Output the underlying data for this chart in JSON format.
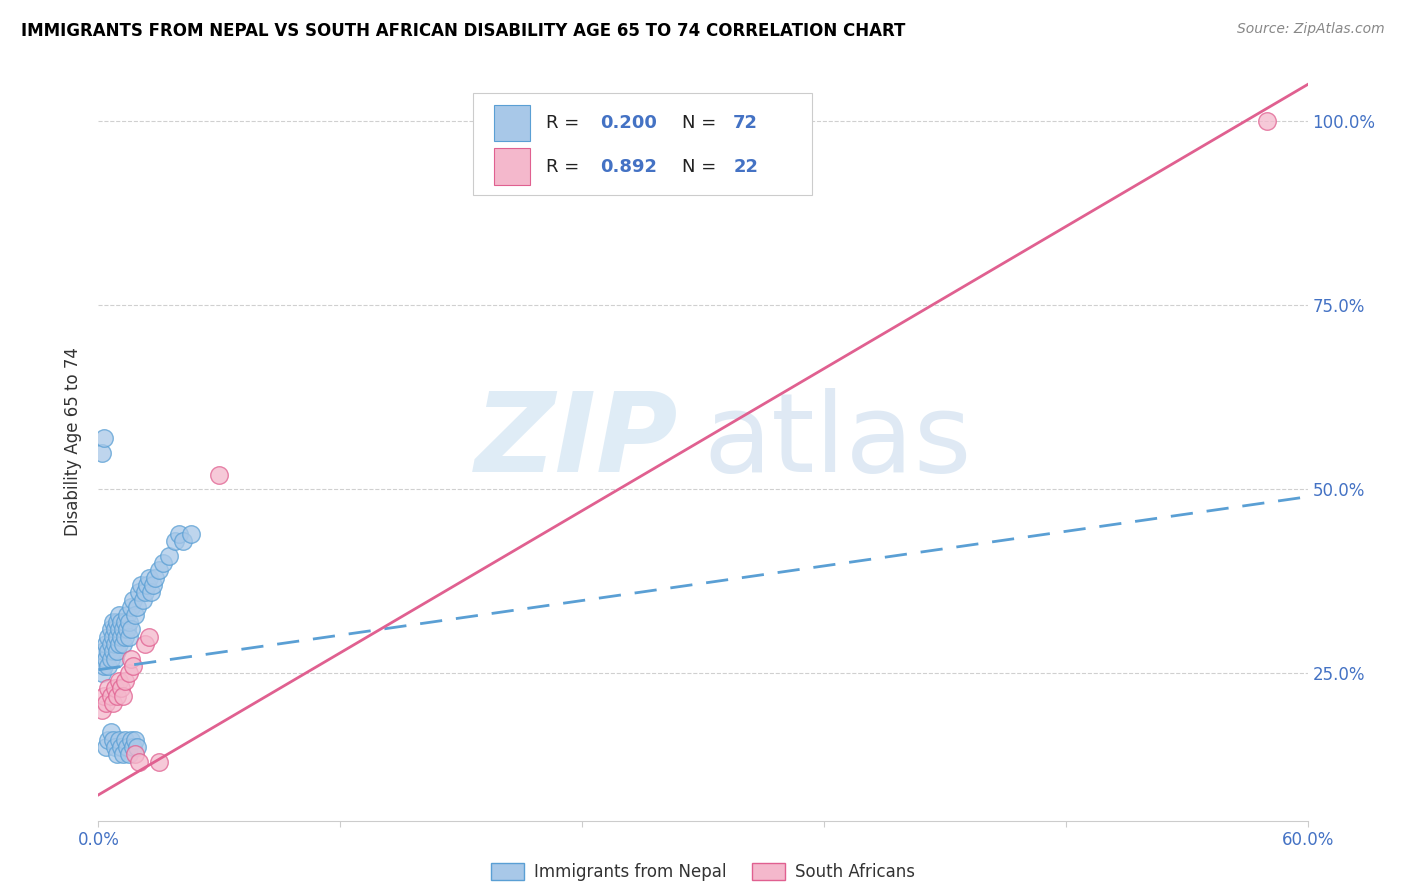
{
  "title": "IMMIGRANTS FROM NEPAL VS SOUTH AFRICAN DISABILITY AGE 65 TO 74 CORRELATION CHART",
  "source": "Source: ZipAtlas.com",
  "ylabel": "Disability Age 65 to 74",
  "xlim": [
    0.0,
    0.6
  ],
  "ylim": [
    0.05,
    1.08
  ],
  "ytick_labels": [
    "25.0%",
    "50.0%",
    "75.0%",
    "100.0%"
  ],
  "ytick_values": [
    0.25,
    0.5,
    0.75,
    1.0
  ],
  "xtick_values": [
    0.0,
    0.12,
    0.24,
    0.36,
    0.48,
    0.6
  ],
  "nepal_color": "#a8c8e8",
  "nepal_edge_color": "#5a9fd4",
  "sa_color": "#f4b8cc",
  "sa_edge_color": "#e06090",
  "nepal_trend_x": [
    0.0,
    0.6
  ],
  "nepal_trend_y": [
    0.255,
    0.49
  ],
  "sa_trend_x": [
    0.0,
    0.6
  ],
  "sa_trend_y": [
    0.085,
    1.05
  ],
  "nepal_scatter_x": [
    0.002,
    0.003,
    0.003,
    0.004,
    0.004,
    0.005,
    0.005,
    0.005,
    0.006,
    0.006,
    0.006,
    0.007,
    0.007,
    0.007,
    0.008,
    0.008,
    0.008,
    0.009,
    0.009,
    0.009,
    0.01,
    0.01,
    0.01,
    0.011,
    0.011,
    0.012,
    0.012,
    0.013,
    0.013,
    0.014,
    0.014,
    0.015,
    0.015,
    0.016,
    0.016,
    0.017,
    0.018,
    0.019,
    0.02,
    0.021,
    0.022,
    0.023,
    0.024,
    0.025,
    0.026,
    0.027,
    0.028,
    0.03,
    0.032,
    0.035,
    0.038,
    0.04,
    0.042,
    0.046,
    0.002,
    0.003,
    0.004,
    0.005,
    0.006,
    0.007,
    0.008,
    0.009,
    0.01,
    0.011,
    0.012,
    0.013,
    0.014,
    0.015,
    0.016,
    0.017,
    0.018,
    0.019
  ],
  "nepal_scatter_y": [
    0.25,
    0.26,
    0.28,
    0.27,
    0.29,
    0.26,
    0.28,
    0.3,
    0.27,
    0.29,
    0.31,
    0.28,
    0.3,
    0.32,
    0.27,
    0.29,
    0.31,
    0.28,
    0.3,
    0.32,
    0.29,
    0.31,
    0.33,
    0.3,
    0.32,
    0.29,
    0.31,
    0.3,
    0.32,
    0.31,
    0.33,
    0.3,
    0.32,
    0.31,
    0.34,
    0.35,
    0.33,
    0.34,
    0.36,
    0.37,
    0.35,
    0.36,
    0.37,
    0.38,
    0.36,
    0.37,
    0.38,
    0.39,
    0.4,
    0.41,
    0.43,
    0.44,
    0.43,
    0.44,
    0.55,
    0.57,
    0.15,
    0.16,
    0.17,
    0.16,
    0.15,
    0.14,
    0.16,
    0.15,
    0.14,
    0.16,
    0.15,
    0.14,
    0.16,
    0.15,
    0.16,
    0.15
  ],
  "sa_scatter_x": [
    0.002,
    0.003,
    0.004,
    0.005,
    0.006,
    0.007,
    0.008,
    0.009,
    0.01,
    0.011,
    0.012,
    0.013,
    0.015,
    0.016,
    0.017,
    0.018,
    0.02,
    0.023,
    0.025,
    0.03,
    0.06,
    0.58
  ],
  "sa_scatter_y": [
    0.2,
    0.22,
    0.21,
    0.23,
    0.22,
    0.21,
    0.23,
    0.22,
    0.24,
    0.23,
    0.22,
    0.24,
    0.25,
    0.27,
    0.26,
    0.14,
    0.13,
    0.29,
    0.3,
    0.13,
    0.52,
    1.0
  ],
  "watermark_zip_color": "#c5ddf0",
  "watermark_atlas_color": "#b8d0e8"
}
